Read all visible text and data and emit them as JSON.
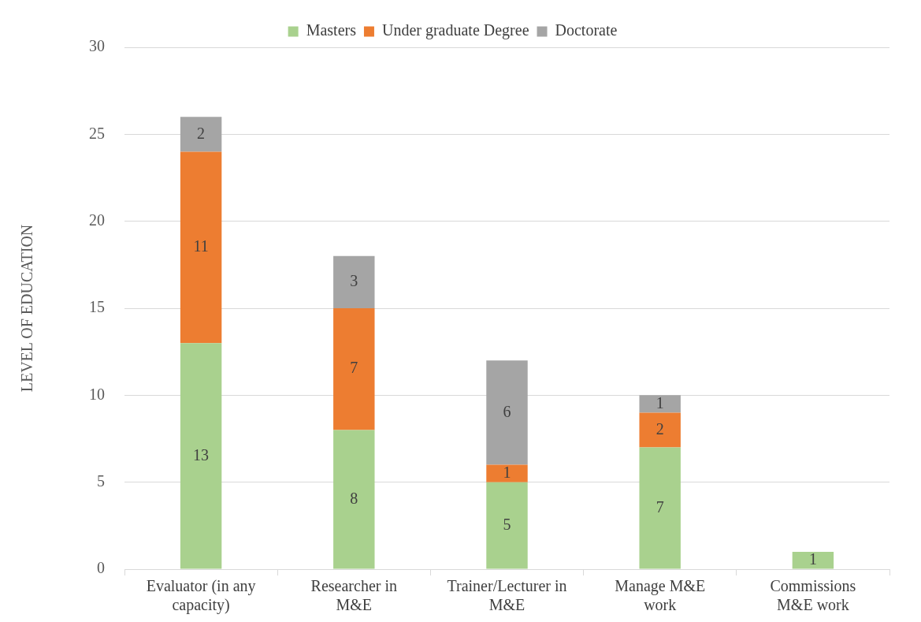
{
  "chart_data": {
    "type": "bar",
    "stacked": true,
    "ylabel": "LEVEL OF EDUCATION",
    "categories": [
      "Evaluator (in any capacity)",
      "Researcher in M&E",
      "Trainer/Lecturer in M&E",
      "Manage M&E work",
      "Commissions M&E work"
    ],
    "series": [
      {
        "name": "Masters",
        "color": "#a9d18e",
        "values": [
          13,
          8,
          5,
          7,
          1
        ]
      },
      {
        "name": "Under graduate Degree",
        "color": "#ed7d31",
        "values": [
          11,
          7,
          1,
          2,
          null
        ]
      },
      {
        "name": "Doctorate",
        "color": "#a5a5a5",
        "values": [
          2,
          3,
          6,
          1,
          null
        ]
      }
    ],
    "ylim": [
      0,
      30
    ],
    "yticks": [
      0,
      5,
      10,
      15,
      20,
      25,
      30
    ],
    "grid": "y",
    "legend": "top",
    "data_labels": true
  }
}
